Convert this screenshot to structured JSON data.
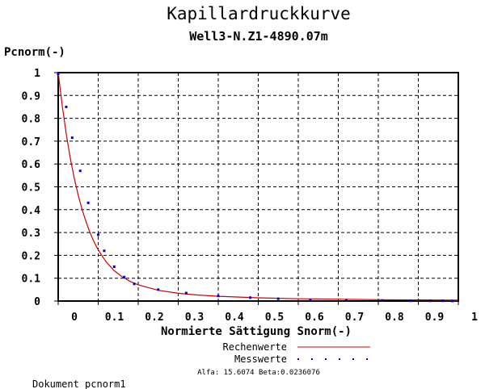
{
  "chart_data": {
    "type": "line",
    "title": "Kapillardruckkurve",
    "subtitle": "Well3-N.Z1-4890.07m",
    "ylabel": "Pcnorm(-)",
    "xlabel": "Normierte Sättigung Snorm(-)",
    "xlim": [
      0,
      1
    ],
    "ylim": [
      0,
      1
    ],
    "grid": true,
    "x_tick_labels": [
      "0",
      "0.1",
      "0.2",
      "0.3",
      "0.4",
      "0.5",
      "0.6",
      "0.7",
      "0.8",
      "0.9",
      "1"
    ],
    "y_tick_labels": [
      "0",
      "0.1",
      "0.2",
      "0.3",
      "0.4",
      "0.5",
      "0.6",
      "0.7",
      "0.8",
      "0.9",
      "1"
    ],
    "legend_placement": "bottom-center",
    "series": [
      {
        "name": "Rechenwerte",
        "style": "line",
        "color": "#cc0000",
        "x": [
          0.0,
          0.01,
          0.02,
          0.03,
          0.04,
          0.05,
          0.06,
          0.07,
          0.08,
          0.09,
          0.1,
          0.12,
          0.14,
          0.16,
          0.18,
          0.2,
          0.25,
          0.3,
          0.35,
          0.4,
          0.5,
          0.6,
          0.7,
          0.8,
          0.9,
          1.0
        ],
        "y": [
          1.0,
          0.856,
          0.733,
          0.628,
          0.539,
          0.463,
          0.399,
          0.344,
          0.297,
          0.258,
          0.224,
          0.171,
          0.133,
          0.106,
          0.086,
          0.071,
          0.047,
          0.034,
          0.026,
          0.021,
          0.014,
          0.01,
          0.008,
          0.006,
          0.005,
          0.004
        ]
      },
      {
        "name": "Messwerte",
        "style": "points",
        "color": "#0000cc",
        "x": [
          0.0,
          0.02,
          0.035,
          0.055,
          0.075,
          0.1,
          0.115,
          0.14,
          0.165,
          0.19,
          0.25,
          0.32,
          0.4,
          0.48,
          0.55,
          0.63,
          0.72,
          0.81,
          0.88,
          0.93,
          0.96,
          0.985
        ],
        "y": [
          0.995,
          0.85,
          0.715,
          0.57,
          0.43,
          0.29,
          0.22,
          0.15,
          0.105,
          0.075,
          0.05,
          0.035,
          0.022,
          0.015,
          0.01,
          0.005,
          0.003,
          0.002,
          0.001,
          0.001,
          0.001,
          0.0
        ]
      }
    ],
    "parameters_text": "Alfa: 15.6074 Beta:0.0236076"
  },
  "footer": "Dokument pcnorm1"
}
